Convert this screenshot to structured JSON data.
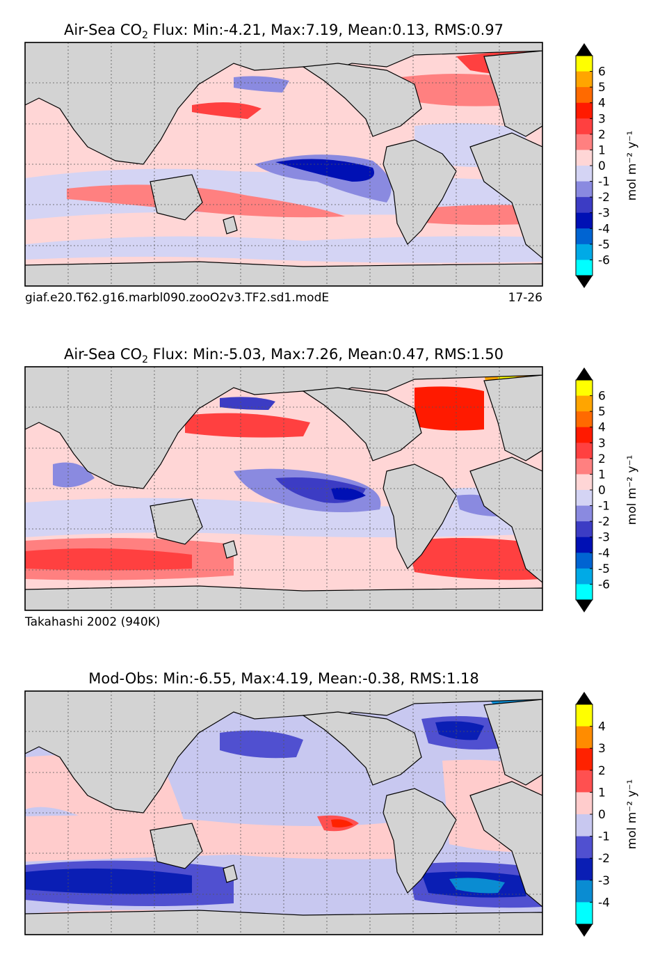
{
  "chart_data": [
    {
      "type": "heatmap",
      "title_prefix": "Air-Sea CO",
      "title_sub": "2",
      "title_rest": " Flux: Min:-4.21, Max:7.19, Mean:0.13, RMS:0.97",
      "caption_left": "giaf.e20.T62.g16.marbl090.zooO2v3.TF2.sd1.modE",
      "caption_right": "17-26",
      "cbar_label": "mol m⁻² y⁻¹",
      "cbar_ticks": [
        "6",
        "5",
        "4",
        "3",
        "2",
        "1",
        "0",
        "-1",
        "-2",
        "-3",
        "-4",
        "-5",
        "-6"
      ],
      "cbar_colors": [
        "#ffff00",
        "#ffa500",
        "#ff6a00",
        "#ff1a00",
        "#ff4040",
        "#ff8080",
        "#ffd6d6",
        "#d4d4f4",
        "#8a8ae0",
        "#3c3cc4",
        "#0010b4",
        "#0064d2",
        "#00aae6",
        "#00ffff"
      ],
      "stats": {
        "min": -4.21,
        "max": 7.19,
        "mean": 0.13,
        "rms": 0.97
      }
    },
    {
      "type": "heatmap",
      "title_prefix": "Air-Sea CO",
      "title_sub": "2",
      "title_rest": " Flux: Min:-5.03, Max:7.26, Mean:0.47, RMS:1.50",
      "caption_left": "Takahashi 2002 (940K)",
      "caption_right": "",
      "cbar_label": "mol m⁻² y⁻¹",
      "cbar_ticks": [
        "6",
        "5",
        "4",
        "3",
        "2",
        "1",
        "0",
        "-1",
        "-2",
        "-3",
        "-4",
        "-5",
        "-6"
      ],
      "cbar_colors": [
        "#ffff00",
        "#ffa500",
        "#ff6a00",
        "#ff1a00",
        "#ff4040",
        "#ff8080",
        "#ffd6d6",
        "#d4d4f4",
        "#8a8ae0",
        "#3c3cc4",
        "#0010b4",
        "#0064d2",
        "#00aae6",
        "#00ffff"
      ],
      "stats": {
        "min": -5.03,
        "max": 7.26,
        "mean": 0.47,
        "rms": 1.5
      }
    },
    {
      "type": "heatmap",
      "title_prefix": "Mod-Obs: Min:-6.55, Max:4.19, Mean:-0.38, RMS:1.18",
      "title_sub": "",
      "title_rest": "",
      "caption_left": "",
      "caption_right": "",
      "cbar_label": "mol m⁻² y⁻¹",
      "cbar_ticks": [
        "4",
        "3",
        "2",
        "1",
        "0",
        "-1",
        "-2",
        "-3",
        "-4"
      ],
      "cbar_colors": [
        "#ffff00",
        "#ff8c00",
        "#ff2200",
        "#ff5050",
        "#ffcccc",
        "#c8c8f0",
        "#5050d0",
        "#0a1eb4",
        "#0a8cd2",
        "#00ffff"
      ],
      "stats": {
        "min": -6.55,
        "max": 4.19,
        "mean": -0.38,
        "rms": 1.18
      }
    }
  ]
}
